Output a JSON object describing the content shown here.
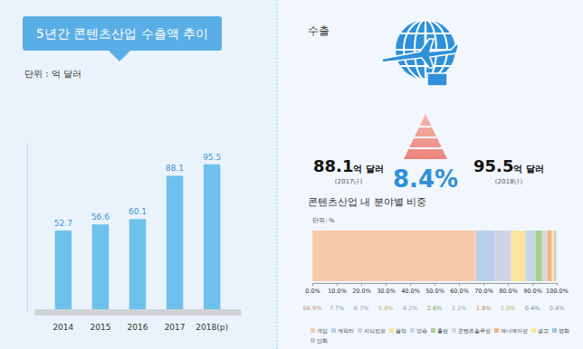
{
  "chart_data": [
    {
      "type": "bar",
      "title": "5년간 콘텐츠산업 수출액 추이",
      "subtitle": "단위 : 억 달러",
      "categories": [
        "2014",
        "2015",
        "2016",
        "2017",
        "2018(p)"
      ],
      "values": [
        52.7,
        56.6,
        60.1,
        88.1,
        95.5
      ],
      "color": "#6ec1ec",
      "ylim": [
        0,
        110
      ],
      "grid": false,
      "data_labels": true,
      "tick_labels": "x"
    },
    {
      "type": "bar",
      "orientation": "horizontal",
      "stacked": true,
      "title": "콘텐츠산업 내 분야별 비중",
      "subtitle": "단위: %",
      "categories": [
        null
      ],
      "series": [
        {
          "name": "게임",
          "color": "#f9c9ab",
          "values": [
            66.9
          ],
          "value_labels": [
            "66.9%"
          ]
        },
        {
          "name": "캐릭터",
          "color": "#b8cfe9",
          "values": [
            7.7
          ],
          "value_labels": [
            "7.7%"
          ]
        },
        {
          "name": "지식정보",
          "color": "#cfd3e6",
          "values": [
            6.7
          ],
          "value_labels": [
            "6.7%"
          ]
        },
        {
          "name": "음악",
          "color": "#fbe3a0",
          "values": [
            5.9
          ],
          "value_labels": [
            "5.9%"
          ]
        },
        {
          "name": "방송",
          "color": "#c5d7ea",
          "values": [
            4.2
          ],
          "value_labels": [
            "4.2%"
          ]
        },
        {
          "name": "출판",
          "color": "#a9d18e",
          "values": [
            2.6
          ],
          "value_labels": [
            "2.6%"
          ]
        },
        {
          "name": "콘텐츠솔루션",
          "color": "#d9d9d9",
          "values": [
            2.2
          ],
          "value_labels": [
            "2.2%"
          ]
        },
        {
          "name": "애니메이션",
          "color": "#f4b183",
          "values": [
            1.8
          ],
          "value_labels": [
            "1.8%"
          ]
        },
        {
          "name": "광고",
          "color": "#ffe699",
          "values": [
            1.0
          ],
          "value_labels": [
            "1.0%"
          ]
        },
        {
          "name": "영화",
          "color": "#9dc3e6",
          "values": [
            0.4
          ],
          "value_labels": [
            "0.4%"
          ]
        },
        {
          "name": "만화",
          "color": "#c9c9c9",
          "values": [
            0.4
          ],
          "value_labels": [
            "0.4%"
          ]
        }
      ],
      "xlim": [
        0,
        100
      ],
      "xticks": [
        {
          "value": 0,
          "label": "0.0%"
        },
        {
          "value": 10,
          "label": "10.0%"
        },
        {
          "value": 20,
          "label": "20.0%"
        },
        {
          "value": 30,
          "label": "30.0%"
        },
        {
          "value": 40,
          "label": "40.0%"
        },
        {
          "value": 50,
          "label": "50.0%"
        },
        {
          "value": 60,
          "label": "60.0%"
        },
        {
          "value": 70,
          "label": "70.0%"
        },
        {
          "value": 80,
          "label": "80.0%"
        },
        {
          "value": 90,
          "label": "90.0%"
        },
        {
          "value": 100,
          "label": "100.0%"
        }
      ],
      "grid": false,
      "data_labels": true,
      "legend": "bottom",
      "tick_labels": "x"
    }
  ],
  "summary": {
    "title": "수출",
    "start": {
      "amount": "88.1",
      "unit": "억 달러",
      "year": "(2017년)"
    },
    "growth": "8.4%",
    "end": {
      "amount": "95.5",
      "unit": "억 달러",
      "year": "(2018년)"
    }
  }
}
